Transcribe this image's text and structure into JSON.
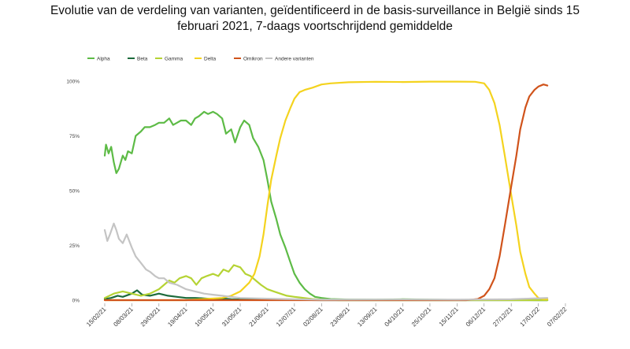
{
  "title_line1": "Evolutie van de verdeling van varianten, geïdentificeerd in de basis-surveillance in België sinds 15",
  "title_line2": "februari 2021, 7-daags voortschrijdend gemiddelde",
  "chart_data": {
    "type": "line",
    "title": "Evolutie van de verdeling van varianten, geïdentificeerd in de basis-surveillance in België sinds 15 februari 2021, 7-daags voortschrijdend gemiddelde",
    "xlabel": "",
    "ylabel": "",
    "ylim": [
      0,
      1
    ],
    "y_ticks": [
      "0%",
      "25%",
      "50%",
      "75%",
      "100%"
    ],
    "x_range": [
      "2021-02-15",
      "2022-02-07"
    ],
    "x_ticks": [
      "15/02/21",
      "08/03/21",
      "29/03/21",
      "19/04/21",
      "10/05/21",
      "31/05/21",
      "21/06/21",
      "12/07/21",
      "02/08/21",
      "23/08/21",
      "13/09/21",
      "04/10/21",
      "25/10/21",
      "15/11/21",
      "06/12/21",
      "27/12/21",
      "17/01/22",
      "07/02/22"
    ],
    "grid": false,
    "legend_position": "top-left",
    "series": [
      {
        "name": "Alpha",
        "color": "#5dbb46",
        "points": [
          [
            "2021-02-15",
            0.66
          ],
          [
            "2021-02-16",
            0.71
          ],
          [
            "2021-02-18",
            0.67
          ],
          [
            "2021-02-20",
            0.7
          ],
          [
            "2021-02-22",
            0.63
          ],
          [
            "2021-02-24",
            0.58
          ],
          [
            "2021-02-26",
            0.6
          ],
          [
            "2021-03-01",
            0.66
          ],
          [
            "2021-03-03",
            0.64
          ],
          [
            "2021-03-05",
            0.68
          ],
          [
            "2021-03-08",
            0.67
          ],
          [
            "2021-03-11",
            0.75
          ],
          [
            "2021-03-15",
            0.77
          ],
          [
            "2021-03-18",
            0.79
          ],
          [
            "2021-03-22",
            0.79
          ],
          [
            "2021-03-26",
            0.8
          ],
          [
            "2021-03-29",
            0.81
          ],
          [
            "2021-04-02",
            0.81
          ],
          [
            "2021-04-06",
            0.83
          ],
          [
            "2021-04-09",
            0.8
          ],
          [
            "2021-04-12",
            0.81
          ],
          [
            "2021-04-15",
            0.82
          ],
          [
            "2021-04-19",
            0.82
          ],
          [
            "2021-04-23",
            0.8
          ],
          [
            "2021-04-26",
            0.83
          ],
          [
            "2021-04-29",
            0.84
          ],
          [
            "2021-05-03",
            0.86
          ],
          [
            "2021-05-06",
            0.85
          ],
          [
            "2021-05-10",
            0.86
          ],
          [
            "2021-05-13",
            0.85
          ],
          [
            "2021-05-17",
            0.83
          ],
          [
            "2021-05-20",
            0.76
          ],
          [
            "2021-05-24",
            0.78
          ],
          [
            "2021-05-27",
            0.72
          ],
          [
            "2021-05-31",
            0.79
          ],
          [
            "2021-06-03",
            0.82
          ],
          [
            "2021-06-07",
            0.8
          ],
          [
            "2021-06-10",
            0.74
          ],
          [
            "2021-06-14",
            0.7
          ],
          [
            "2021-06-18",
            0.64
          ],
          [
            "2021-06-21",
            0.55
          ],
          [
            "2021-06-24",
            0.45
          ],
          [
            "2021-06-28",
            0.37
          ],
          [
            "2021-07-01",
            0.3
          ],
          [
            "2021-07-05",
            0.24
          ],
          [
            "2021-07-09",
            0.17
          ],
          [
            "2021-07-12",
            0.12
          ],
          [
            "2021-07-16",
            0.08
          ],
          [
            "2021-07-20",
            0.05
          ],
          [
            "2021-07-24",
            0.03
          ],
          [
            "2021-07-28",
            0.015
          ],
          [
            "2021-08-02",
            0.01
          ],
          [
            "2021-08-09",
            0.005
          ],
          [
            "2021-08-23",
            0.003
          ],
          [
            "2021-09-13",
            0.002
          ],
          [
            "2021-10-04",
            0.004
          ],
          [
            "2021-10-25",
            0.002
          ],
          [
            "2021-11-15",
            0.001
          ],
          [
            "2021-12-06",
            0.001
          ],
          [
            "2021-12-27",
            0.001
          ],
          [
            "2022-01-17",
            0.0
          ],
          [
            "2022-01-24",
            0.0
          ]
        ]
      },
      {
        "name": "Beta",
        "color": "#1c6b3c",
        "points": [
          [
            "2021-02-15",
            0.005
          ],
          [
            "2021-02-20",
            0.01
          ],
          [
            "2021-02-25",
            0.02
          ],
          [
            "2021-03-01",
            0.015
          ],
          [
            "2021-03-08",
            0.03
          ],
          [
            "2021-03-12",
            0.045
          ],
          [
            "2021-03-16",
            0.025
          ],
          [
            "2021-03-22",
            0.02
          ],
          [
            "2021-03-29",
            0.03
          ],
          [
            "2021-04-05",
            0.02
          ],
          [
            "2021-04-12",
            0.015
          ],
          [
            "2021-04-19",
            0.01
          ],
          [
            "2021-04-26",
            0.01
          ],
          [
            "2021-05-03",
            0.008
          ],
          [
            "2021-05-10",
            0.005
          ],
          [
            "2021-05-17",
            0.008
          ],
          [
            "2021-05-24",
            0.004
          ],
          [
            "2021-05-31",
            0.003
          ],
          [
            "2021-06-14",
            0.002
          ],
          [
            "2021-07-05",
            0.001
          ],
          [
            "2021-08-02",
            0.0
          ],
          [
            "2022-01-24",
            0.0
          ]
        ]
      },
      {
        "name": "Gamma",
        "color": "#b5d334",
        "points": [
          [
            "2021-02-15",
            0.01
          ],
          [
            "2021-02-22",
            0.03
          ],
          [
            "2021-03-01",
            0.04
          ],
          [
            "2021-03-08",
            0.03
          ],
          [
            "2021-03-15",
            0.02
          ],
          [
            "2021-03-22",
            0.03
          ],
          [
            "2021-03-29",
            0.05
          ],
          [
            "2021-04-02",
            0.07
          ],
          [
            "2021-04-06",
            0.09
          ],
          [
            "2021-04-10",
            0.08
          ],
          [
            "2021-04-14",
            0.1
          ],
          [
            "2021-04-19",
            0.11
          ],
          [
            "2021-04-23",
            0.1
          ],
          [
            "2021-04-27",
            0.07
          ],
          [
            "2021-05-01",
            0.1
          ],
          [
            "2021-05-05",
            0.11
          ],
          [
            "2021-05-10",
            0.12
          ],
          [
            "2021-05-14",
            0.11
          ],
          [
            "2021-05-18",
            0.14
          ],
          [
            "2021-05-22",
            0.13
          ],
          [
            "2021-05-26",
            0.16
          ],
          [
            "2021-05-31",
            0.15
          ],
          [
            "2021-06-04",
            0.12
          ],
          [
            "2021-06-08",
            0.11
          ],
          [
            "2021-06-12",
            0.09
          ],
          [
            "2021-06-16",
            0.07
          ],
          [
            "2021-06-21",
            0.05
          ],
          [
            "2021-06-26",
            0.04
          ],
          [
            "2021-07-01",
            0.03
          ],
          [
            "2021-07-06",
            0.02
          ],
          [
            "2021-07-12",
            0.015
          ],
          [
            "2021-07-19",
            0.01
          ],
          [
            "2021-07-26",
            0.005
          ],
          [
            "2021-08-02",
            0.002
          ],
          [
            "2021-08-16",
            0.0
          ],
          [
            "2022-01-24",
            0.0
          ]
        ]
      },
      {
        "name": "Delta",
        "color": "#f4d31e",
        "points": [
          [
            "2021-02-15",
            0.0
          ],
          [
            "2021-04-19",
            0.0
          ],
          [
            "2021-05-03",
            0.005
          ],
          [
            "2021-05-17",
            0.01
          ],
          [
            "2021-05-24",
            0.02
          ],
          [
            "2021-05-31",
            0.04
          ],
          [
            "2021-06-07",
            0.08
          ],
          [
            "2021-06-11",
            0.12
          ],
          [
            "2021-06-15",
            0.2
          ],
          [
            "2021-06-18",
            0.3
          ],
          [
            "2021-06-21",
            0.43
          ],
          [
            "2021-06-24",
            0.55
          ],
          [
            "2021-06-28",
            0.66
          ],
          [
            "2021-07-01",
            0.74
          ],
          [
            "2021-07-05",
            0.82
          ],
          [
            "2021-07-09",
            0.88
          ],
          [
            "2021-07-12",
            0.92
          ],
          [
            "2021-07-16",
            0.95
          ],
          [
            "2021-07-20",
            0.96
          ],
          [
            "2021-07-26",
            0.97
          ],
          [
            "2021-08-02",
            0.985
          ],
          [
            "2021-08-09",
            0.99
          ],
          [
            "2021-08-23",
            0.995
          ],
          [
            "2021-09-13",
            0.997
          ],
          [
            "2021-10-04",
            0.996
          ],
          [
            "2021-10-25",
            0.998
          ],
          [
            "2021-11-15",
            0.998
          ],
          [
            "2021-11-29",
            0.997
          ],
          [
            "2021-12-06",
            0.99
          ],
          [
            "2021-12-10",
            0.96
          ],
          [
            "2021-12-14",
            0.9
          ],
          [
            "2021-12-18",
            0.8
          ],
          [
            "2021-12-22",
            0.66
          ],
          [
            "2021-12-27",
            0.48
          ],
          [
            "2021-12-31",
            0.34
          ],
          [
            "2022-01-03",
            0.22
          ],
          [
            "2022-01-07",
            0.12
          ],
          [
            "2022-01-10",
            0.06
          ],
          [
            "2022-01-14",
            0.03
          ],
          [
            "2022-01-17",
            0.01
          ],
          [
            "2022-01-21",
            0.005
          ],
          [
            "2022-01-24",
            0.005
          ]
        ]
      },
      {
        "name": "Omikron",
        "color": "#d0531b",
        "points": [
          [
            "2021-02-15",
            0.0
          ],
          [
            "2021-11-22",
            0.0
          ],
          [
            "2021-12-01",
            0.005
          ],
          [
            "2021-12-06",
            0.02
          ],
          [
            "2021-12-10",
            0.05
          ],
          [
            "2021-12-14",
            0.1
          ],
          [
            "2021-12-18",
            0.2
          ],
          [
            "2021-12-22",
            0.34
          ],
          [
            "2021-12-27",
            0.52
          ],
          [
            "2021-12-31",
            0.66
          ],
          [
            "2022-01-03",
            0.78
          ],
          [
            "2022-01-07",
            0.88
          ],
          [
            "2022-01-10",
            0.93
          ],
          [
            "2022-01-14",
            0.96
          ],
          [
            "2022-01-17",
            0.975
          ],
          [
            "2022-01-21",
            0.985
          ],
          [
            "2022-01-24",
            0.98
          ]
        ]
      },
      {
        "name": "Andere varianten",
        "color": "#c4c4c4",
        "points": [
          [
            "2021-02-15",
            0.32
          ],
          [
            "2021-02-17",
            0.27
          ],
          [
            "2021-02-19",
            0.3
          ],
          [
            "2021-02-22",
            0.35
          ],
          [
            "2021-02-24",
            0.32
          ],
          [
            "2021-02-26",
            0.28
          ],
          [
            "2021-03-01",
            0.26
          ],
          [
            "2021-03-04",
            0.3
          ],
          [
            "2021-03-08",
            0.24
          ],
          [
            "2021-03-11",
            0.2
          ],
          [
            "2021-03-15",
            0.17
          ],
          [
            "2021-03-19",
            0.14
          ],
          [
            "2021-03-22",
            0.13
          ],
          [
            "2021-03-26",
            0.11
          ],
          [
            "2021-03-29",
            0.1
          ],
          [
            "2021-04-02",
            0.1
          ],
          [
            "2021-04-06",
            0.08
          ],
          [
            "2021-04-12",
            0.07
          ],
          [
            "2021-04-19",
            0.05
          ],
          [
            "2021-04-26",
            0.04
          ],
          [
            "2021-05-03",
            0.03
          ],
          [
            "2021-05-10",
            0.025
          ],
          [
            "2021-05-17",
            0.02
          ],
          [
            "2021-05-24",
            0.015
          ],
          [
            "2021-05-31",
            0.01
          ],
          [
            "2021-06-14",
            0.008
          ],
          [
            "2021-07-05",
            0.005
          ],
          [
            "2021-08-02",
            0.002
          ],
          [
            "2021-10-04",
            0.003
          ],
          [
            "2021-11-15",
            0.002
          ],
          [
            "2021-12-27",
            0.004
          ],
          [
            "2022-01-24",
            0.01
          ]
        ]
      }
    ]
  }
}
